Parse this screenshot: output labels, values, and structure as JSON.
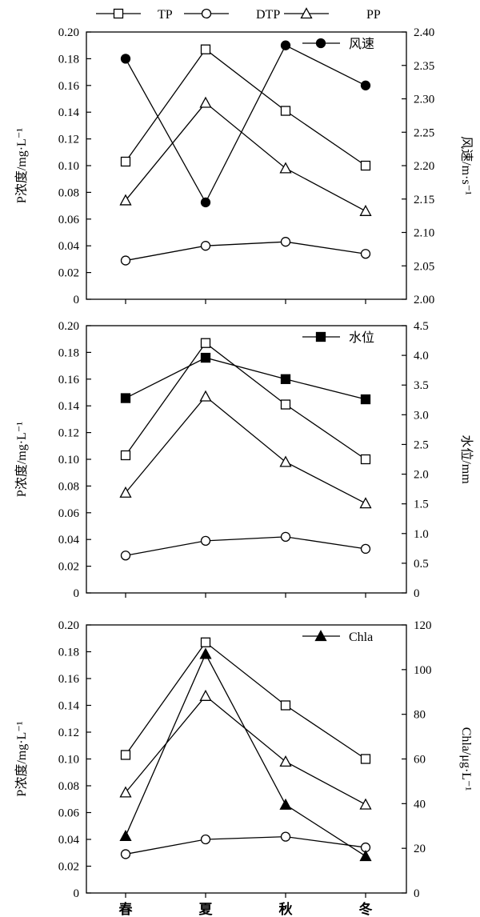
{
  "legend_top": [
    {
      "name": "TP",
      "marker": "square-open"
    },
    {
      "name": "DTP",
      "marker": "circle-open"
    },
    {
      "name": "PP",
      "marker": "triangle-open"
    }
  ],
  "chart_data": [
    {
      "type": "line",
      "categories": [
        "春",
        "夏",
        "秋",
        "冬"
      ],
      "ylabel": "P浓度/mg·L⁻¹",
      "ylim": [
        0,
        0.2
      ],
      "yticks": [
        "0",
        "0.02",
        "0.04",
        "0.06",
        "0.08",
        "0.10",
        "0.12",
        "0.14",
        "0.16",
        "0.18",
        "0.20"
      ],
      "series": [
        {
          "name": "TP",
          "marker": "square-open",
          "values": [
            0.103,
            0.187,
            0.141,
            0.1
          ]
        },
        {
          "name": "DTP",
          "marker": "circle-open",
          "values": [
            0.029,
            0.04,
            0.043,
            0.034
          ]
        },
        {
          "name": "PP",
          "marker": "triangle-open",
          "values": [
            0.074,
            0.147,
            0.098,
            0.066
          ]
        }
      ],
      "secondary": {
        "name": "风速",
        "marker": "circle-filled",
        "ylabel": "风速/m·s⁻¹",
        "ylim": [
          2.0,
          2.4
        ],
        "yticks": [
          "2.00",
          "2.05",
          "2.10",
          "2.15",
          "2.20",
          "2.25",
          "2.30",
          "2.35",
          "2.40"
        ],
        "values": [
          2.36,
          2.145,
          2.38,
          2.32
        ]
      },
      "legend": "top-right"
    },
    {
      "type": "line",
      "categories": [
        "春",
        "夏",
        "秋",
        "冬"
      ],
      "ylabel": "P浓度/mg·L⁻¹",
      "ylim": [
        0,
        0.2
      ],
      "yticks": [
        "0",
        "0.02",
        "0.04",
        "0.06",
        "0.08",
        "0.10",
        "0.12",
        "0.14",
        "0.16",
        "0.18",
        "0.20"
      ],
      "series": [
        {
          "name": "TP",
          "marker": "square-open",
          "values": [
            0.103,
            0.187,
            0.141,
            0.1
          ]
        },
        {
          "name": "DTP",
          "marker": "circle-open",
          "values": [
            0.028,
            0.039,
            0.042,
            0.033
          ]
        },
        {
          "name": "PP",
          "marker": "triangle-open",
          "values": [
            0.075,
            0.147,
            0.098,
            0.067
          ]
        }
      ],
      "secondary": {
        "name": "水位",
        "marker": "square-filled",
        "ylabel": "水位/mm",
        "ylim": [
          0,
          4.5
        ],
        "yticks": [
          "0",
          "0.5",
          "1.0",
          "1.5",
          "2.0",
          "2.5",
          "3.0",
          "3.5",
          "4.0",
          "4.5"
        ],
        "values": [
          3.28,
          3.96,
          3.6,
          3.26
        ]
      },
      "legend": "top-right"
    },
    {
      "type": "line",
      "categories": [
        "春",
        "夏",
        "秋",
        "冬"
      ],
      "ylabel": "P浓度/mg·L⁻¹",
      "ylim": [
        0,
        0.2
      ],
      "yticks": [
        "0",
        "0.02",
        "0.04",
        "0.06",
        "0.08",
        "0.10",
        "0.12",
        "0.14",
        "0.16",
        "0.18",
        "0.20"
      ],
      "series": [
        {
          "name": "TP",
          "marker": "square-open",
          "values": [
            0.103,
            0.187,
            0.14,
            0.1
          ]
        },
        {
          "name": "DTP",
          "marker": "circle-open",
          "values": [
            0.029,
            0.04,
            0.042,
            0.034
          ]
        },
        {
          "name": "PP",
          "marker": "triangle-open",
          "values": [
            0.075,
            0.147,
            0.098,
            0.066
          ]
        }
      ],
      "secondary": {
        "name": "Chla",
        "marker": "triangle-filled",
        "ylabel": "Chla/μg·L⁻¹",
        "ylim": [
          0,
          120
        ],
        "yticks": [
          "0",
          "20",
          "40",
          "60",
          "80",
          "100",
          "120"
        ],
        "values": [
          25.5,
          107,
          39.5,
          16.5
        ]
      },
      "legend": "top-right"
    }
  ]
}
